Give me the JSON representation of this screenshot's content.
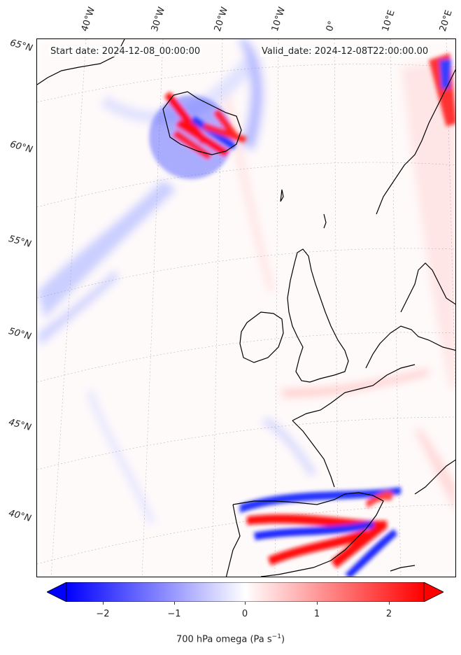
{
  "header": {
    "start_date": "Start date: 2024-12-08_00:00:00",
    "valid_date": "Valid_date: 2024-12-08T22:00:00.00"
  },
  "longitude_labels": [
    "40°W",
    "30°W",
    "20°W",
    "10°W",
    "0°",
    "10°E",
    "20°E"
  ],
  "latitude_labels": [
    "65°N",
    "60°N",
    "55°N",
    "50°N",
    "45°N",
    "40°N"
  ],
  "colorbar": {
    "ticks": [
      "−2",
      "−1",
      "0",
      "1",
      "2"
    ],
    "label_prefix": "700 hPa omega (Pa s",
    "label_sup": "−1",
    "label_suffix": ")",
    "min_color": "#0000ff",
    "mid_color": "#ffffff",
    "max_color": "#ff0000",
    "range": [
      -2.5,
      2.5
    ]
  }
}
